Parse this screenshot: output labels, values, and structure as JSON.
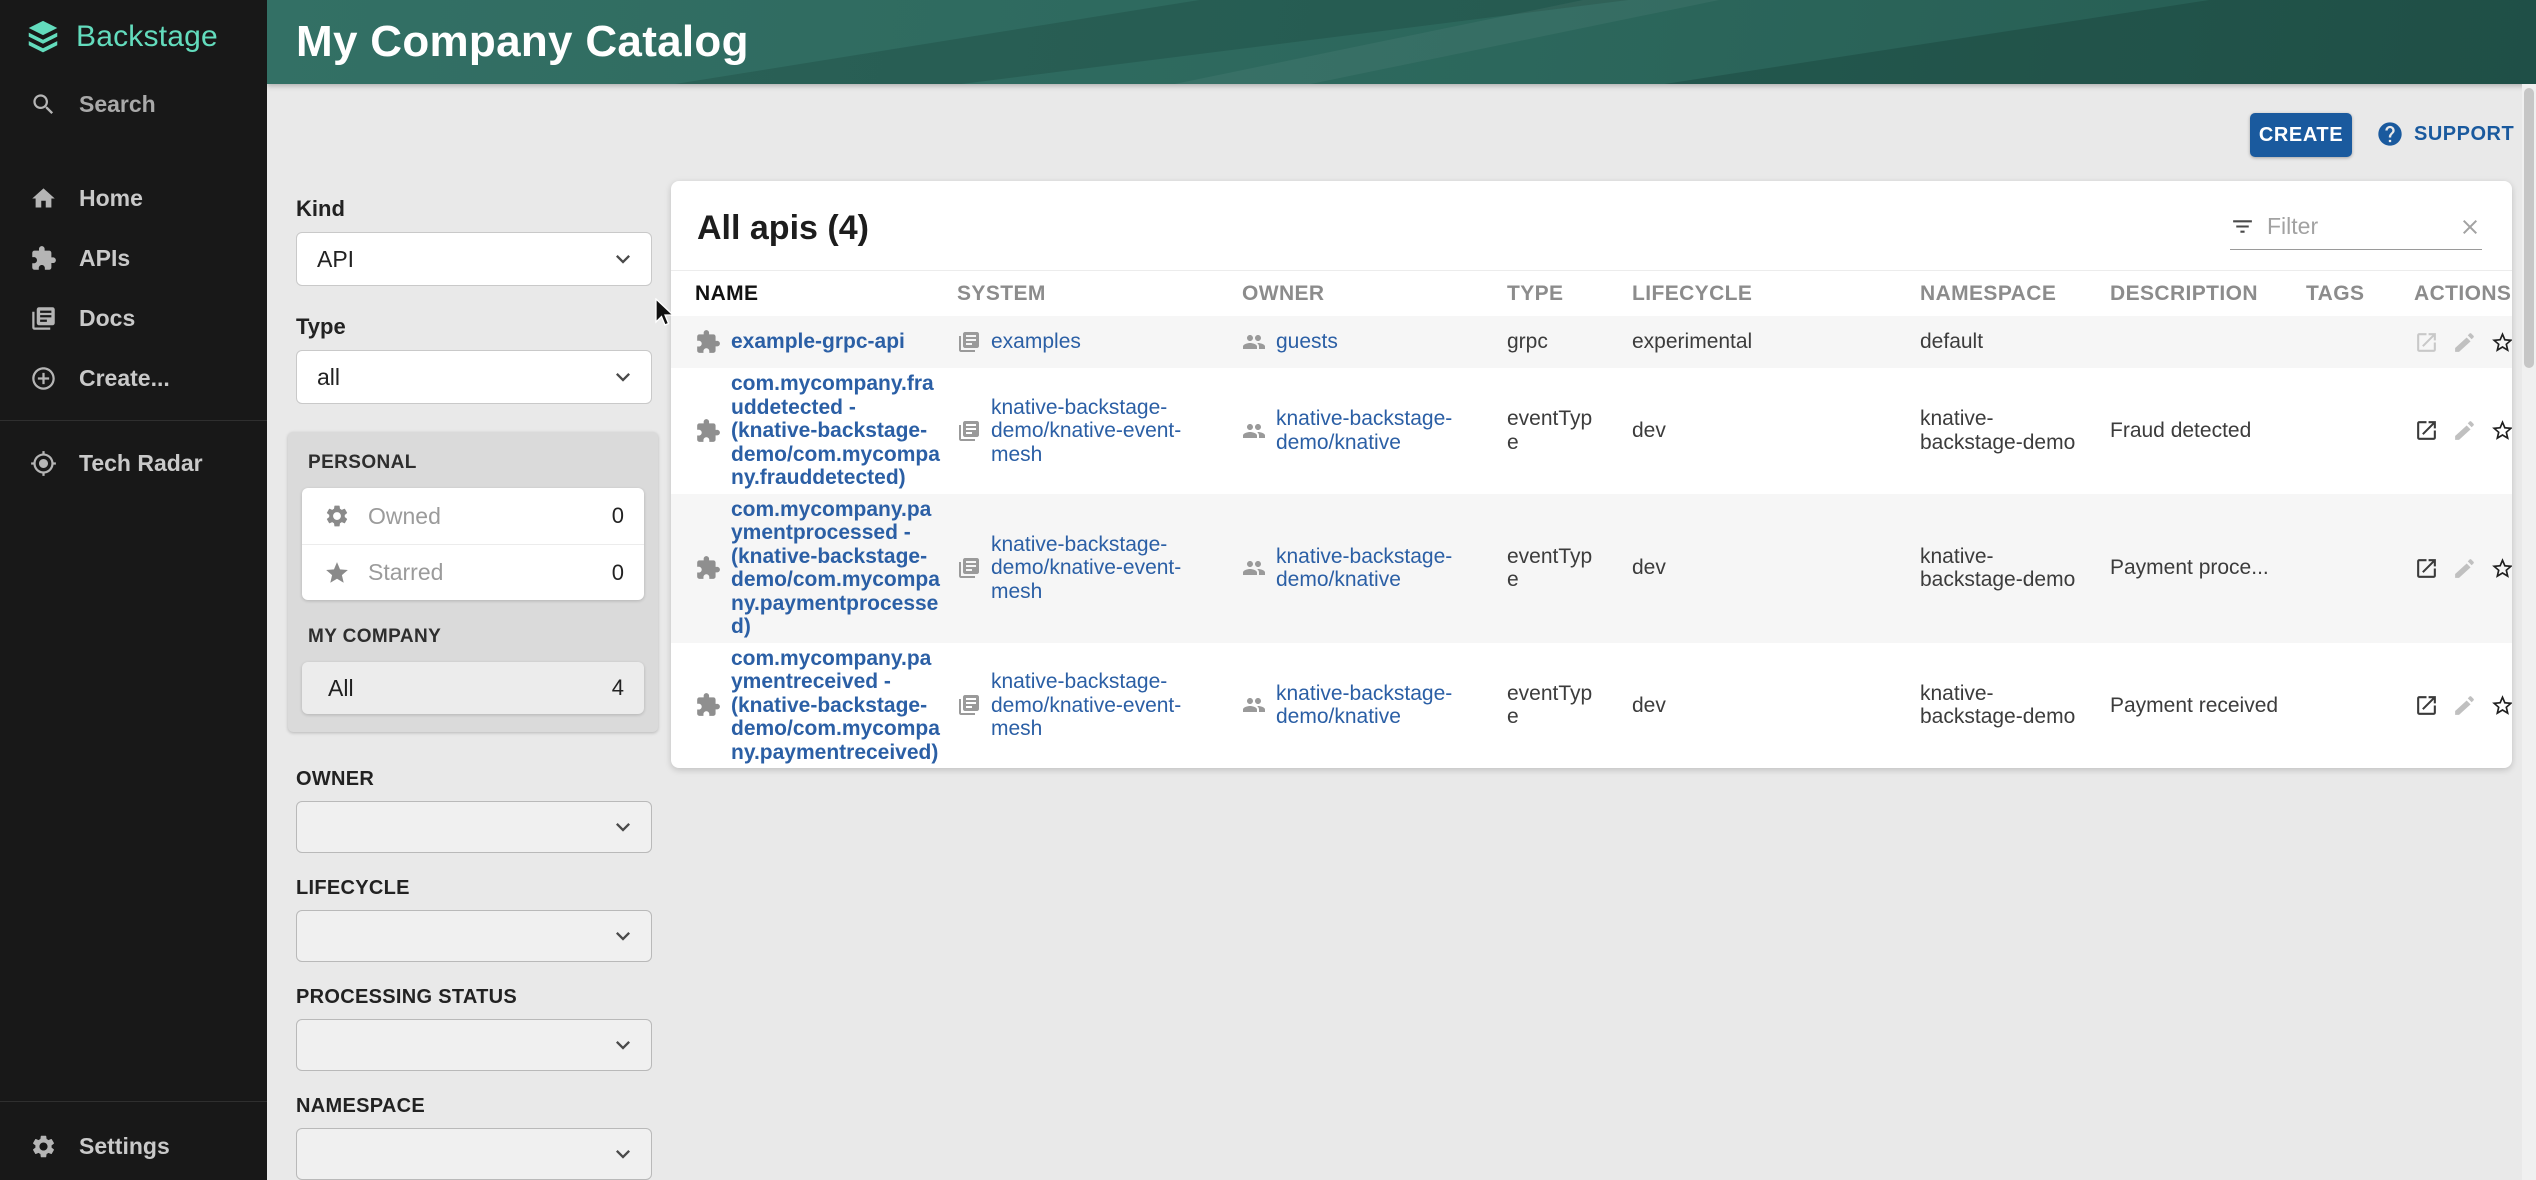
{
  "sidebar": {
    "logo_text": "Backstage",
    "search_label": "Search",
    "items": [
      {
        "label": "Home",
        "icon": "home-icon"
      },
      {
        "label": "APIs",
        "icon": "puzzle-icon"
      },
      {
        "label": "Docs",
        "icon": "docs-icon"
      },
      {
        "label": "Create...",
        "icon": "add-circle-icon"
      },
      {
        "label": "Tech Radar",
        "icon": "tech-radar-icon",
        "divider_before": true
      }
    ],
    "settings_label": "Settings"
  },
  "header": {
    "title": "My Company Catalog"
  },
  "toolbar": {
    "create_label": "CREATE",
    "support_label": "SUPPORT"
  },
  "filters": {
    "kind_label": "Kind",
    "kind_value": "API",
    "type_label": "Type",
    "type_value": "all",
    "personal_heading": "PERSONAL",
    "personal_items": [
      {
        "icon": "gear-icon",
        "label": "Owned",
        "count": "0"
      },
      {
        "icon": "star-icon",
        "label": "Starred",
        "count": "0"
      }
    ],
    "company_heading": "MY COMPANY",
    "company_items": [
      {
        "label": "All",
        "count": "4",
        "selected": true
      }
    ],
    "selects": [
      {
        "label": "OWNER",
        "value": ""
      },
      {
        "label": "LIFECYCLE",
        "value": ""
      },
      {
        "label": "PROCESSING STATUS",
        "value": ""
      },
      {
        "label": "NAMESPACE",
        "value": ""
      }
    ]
  },
  "table": {
    "title": "All apis (4)",
    "filter_placeholder": "Filter",
    "columns": [
      "NAME",
      "SYSTEM",
      "OWNER",
      "TYPE",
      "LIFECYCLE",
      "NAMESPACE",
      "DESCRIPTION",
      "TAGS",
      "ACTIONS"
    ],
    "rows": [
      {
        "name": "example-grpc-api",
        "system": "examples",
        "owner": "guests",
        "type": "grpc",
        "lifecycle": "experimental",
        "namespace": "default",
        "description": "",
        "tags": "",
        "external_enabled": false
      },
      {
        "name": "com.mycompany.frauddetected - (knative-backstage-demo/com.mycompany.frauddetected)",
        "system": "knative-backstage-demo/knative-event-mesh",
        "owner": "knative-backstage-demo/knative",
        "type": "eventType",
        "lifecycle": "dev",
        "namespace": "knative-backstage-demo",
        "description": "Fraud detected",
        "tags": "",
        "external_enabled": true
      },
      {
        "name": "com.mycompany.paymentprocessed - (knative-backstage-demo/com.mycompany.paymentprocessed)",
        "system": "knative-backstage-demo/knative-event-mesh",
        "owner": "knative-backstage-demo/knative",
        "type": "eventType",
        "lifecycle": "dev",
        "namespace": "knative-backstage-demo",
        "description": "Payment proce...",
        "tags": "",
        "external_enabled": true
      },
      {
        "name": "com.mycompany.paymentreceived - (knative-backstage-demo/com.mycompany.paymentreceived)",
        "system": "knative-backstage-demo/knative-event-mesh",
        "owner": "knative-backstage-demo/knative",
        "type": "eventType",
        "lifecycle": "dev",
        "namespace": "knative-backstage-demo",
        "description": "Payment received",
        "tags": "",
        "external_enabled": true
      }
    ]
  },
  "colors": {
    "header_green": "#2e6a5e",
    "logo_teal": "#63dcbd",
    "link_blue": "#2b5fa5",
    "button_blue": "#1a5a9e",
    "sidebar_bg": "#181818",
    "page_bg": "#e9e9e9"
  }
}
